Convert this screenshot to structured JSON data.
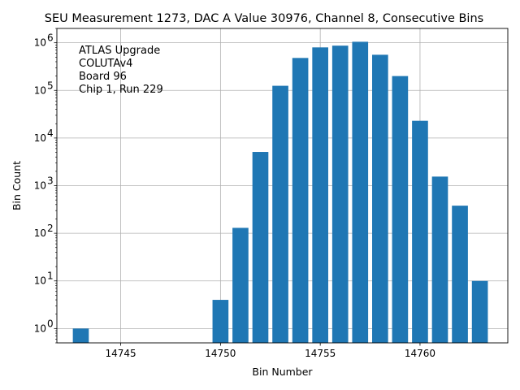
{
  "chart_data": {
    "type": "bar",
    "title": "SEU Measurement 1273, DAC A Value 30976, Channel 8, Consecutive Bins",
    "xlabel": "Bin Number",
    "ylabel": "Bin Count",
    "yscale": "log",
    "xlim": [
      14741.8,
      14764.4
    ],
    "ylim": [
      0.5,
      2000000
    ],
    "xticks": [
      14745,
      14750,
      14755,
      14760
    ],
    "yticks": [
      1,
      10,
      100,
      1000,
      10000,
      100000,
      1000000
    ],
    "grid": true,
    "bar_color": "#1f77b4",
    "bars": [
      {
        "x": 14743,
        "value": 1
      },
      {
        "x": 14750,
        "value": 4
      },
      {
        "x": 14751,
        "value": 130
      },
      {
        "x": 14752,
        "value": 5100
      },
      {
        "x": 14753,
        "value": 125000
      },
      {
        "x": 14754,
        "value": 480000
      },
      {
        "x": 14755,
        "value": 800000
      },
      {
        "x": 14756,
        "value": 870000
      },
      {
        "x": 14757,
        "value": 1050000
      },
      {
        "x": 14758,
        "value": 560000
      },
      {
        "x": 14759,
        "value": 200000
      },
      {
        "x": 14760,
        "value": 23000
      },
      {
        "x": 14761,
        "value": 1550
      },
      {
        "x": 14762,
        "value": 380
      },
      {
        "x": 14763,
        "value": 10
      }
    ],
    "annotation": [
      "ATLAS Upgrade",
      "COLUTAv4",
      " Board 96",
      "Chip 1, Run 229"
    ]
  }
}
